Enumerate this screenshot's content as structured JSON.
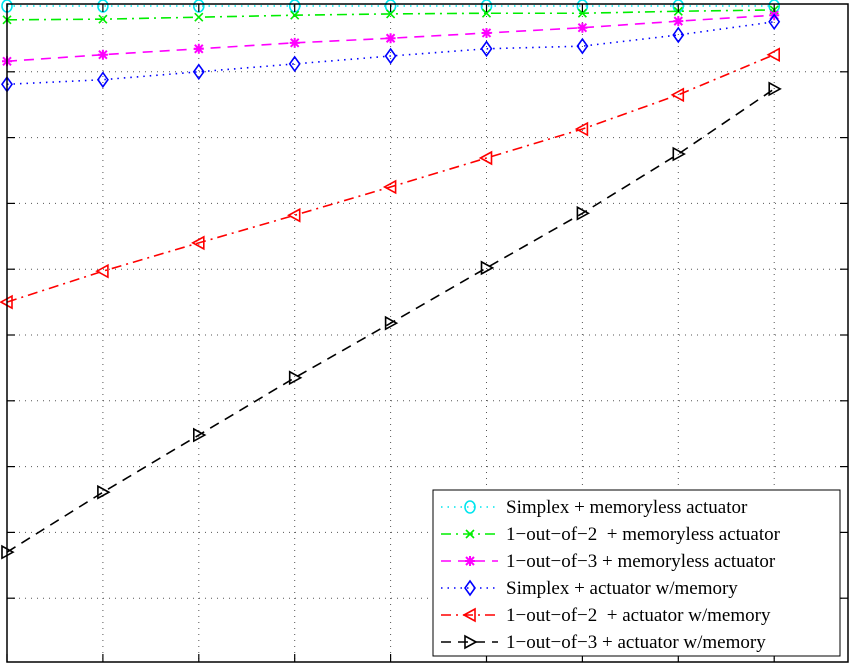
{
  "chart_data": {
    "type": "line",
    "title": "",
    "xlabel": "",
    "ylabel": "",
    "x": [
      1,
      2,
      3,
      4,
      5,
      6,
      7,
      8,
      9
    ],
    "xlim": [
      1,
      9.8
    ],
    "ylim": [
      0,
      10
    ],
    "grid": true,
    "legend_position": "bottom-right",
    "series": [
      {
        "name": "Simplex + memoryless actuator",
        "color": "#00e5ee",
        "line": "dotted",
        "marker": "circle",
        "values": [
          10.0,
          10.0,
          10.0,
          10.0,
          10.0,
          10.0,
          10.0,
          10.0,
          10.0
        ]
      },
      {
        "name": "1−out−of−2  + memoryless actuator",
        "color": "#00ee00",
        "line": "dashdot",
        "marker": "x",
        "values": [
          9.79,
          9.8,
          9.83,
          9.86,
          9.88,
          9.89,
          9.89,
          9.92,
          9.94
        ]
      },
      {
        "name": "1−out−of−3 + memoryless actuator",
        "color": "#ff00ff",
        "line": "dashed",
        "marker": "asterisk",
        "values": [
          9.16,
          9.26,
          9.35,
          9.44,
          9.51,
          9.59,
          9.67,
          9.77,
          9.86
        ]
      },
      {
        "name": "Simplex + actuator w/memory",
        "color": "#0000ff",
        "line": "dotted",
        "marker": "diamond",
        "values": [
          8.81,
          8.88,
          9.0,
          9.12,
          9.24,
          9.35,
          9.39,
          9.56,
          9.76
        ]
      },
      {
        "name": "1−out−of−2  + actuator w/memory",
        "color": "#ff0000",
        "line": "dashdot",
        "marker": "triangle-left",
        "values": [
          5.5,
          5.97,
          6.4,
          6.82,
          7.25,
          7.69,
          8.13,
          8.65,
          9.26
        ]
      },
      {
        "name": "1−out−of−3 + actuator w/memory",
        "color": "#000000",
        "line": "dashed",
        "marker": "triangle-right",
        "values": [
          1.7,
          2.61,
          3.48,
          4.35,
          5.18,
          6.02,
          6.85,
          7.75,
          8.74
        ]
      }
    ]
  }
}
